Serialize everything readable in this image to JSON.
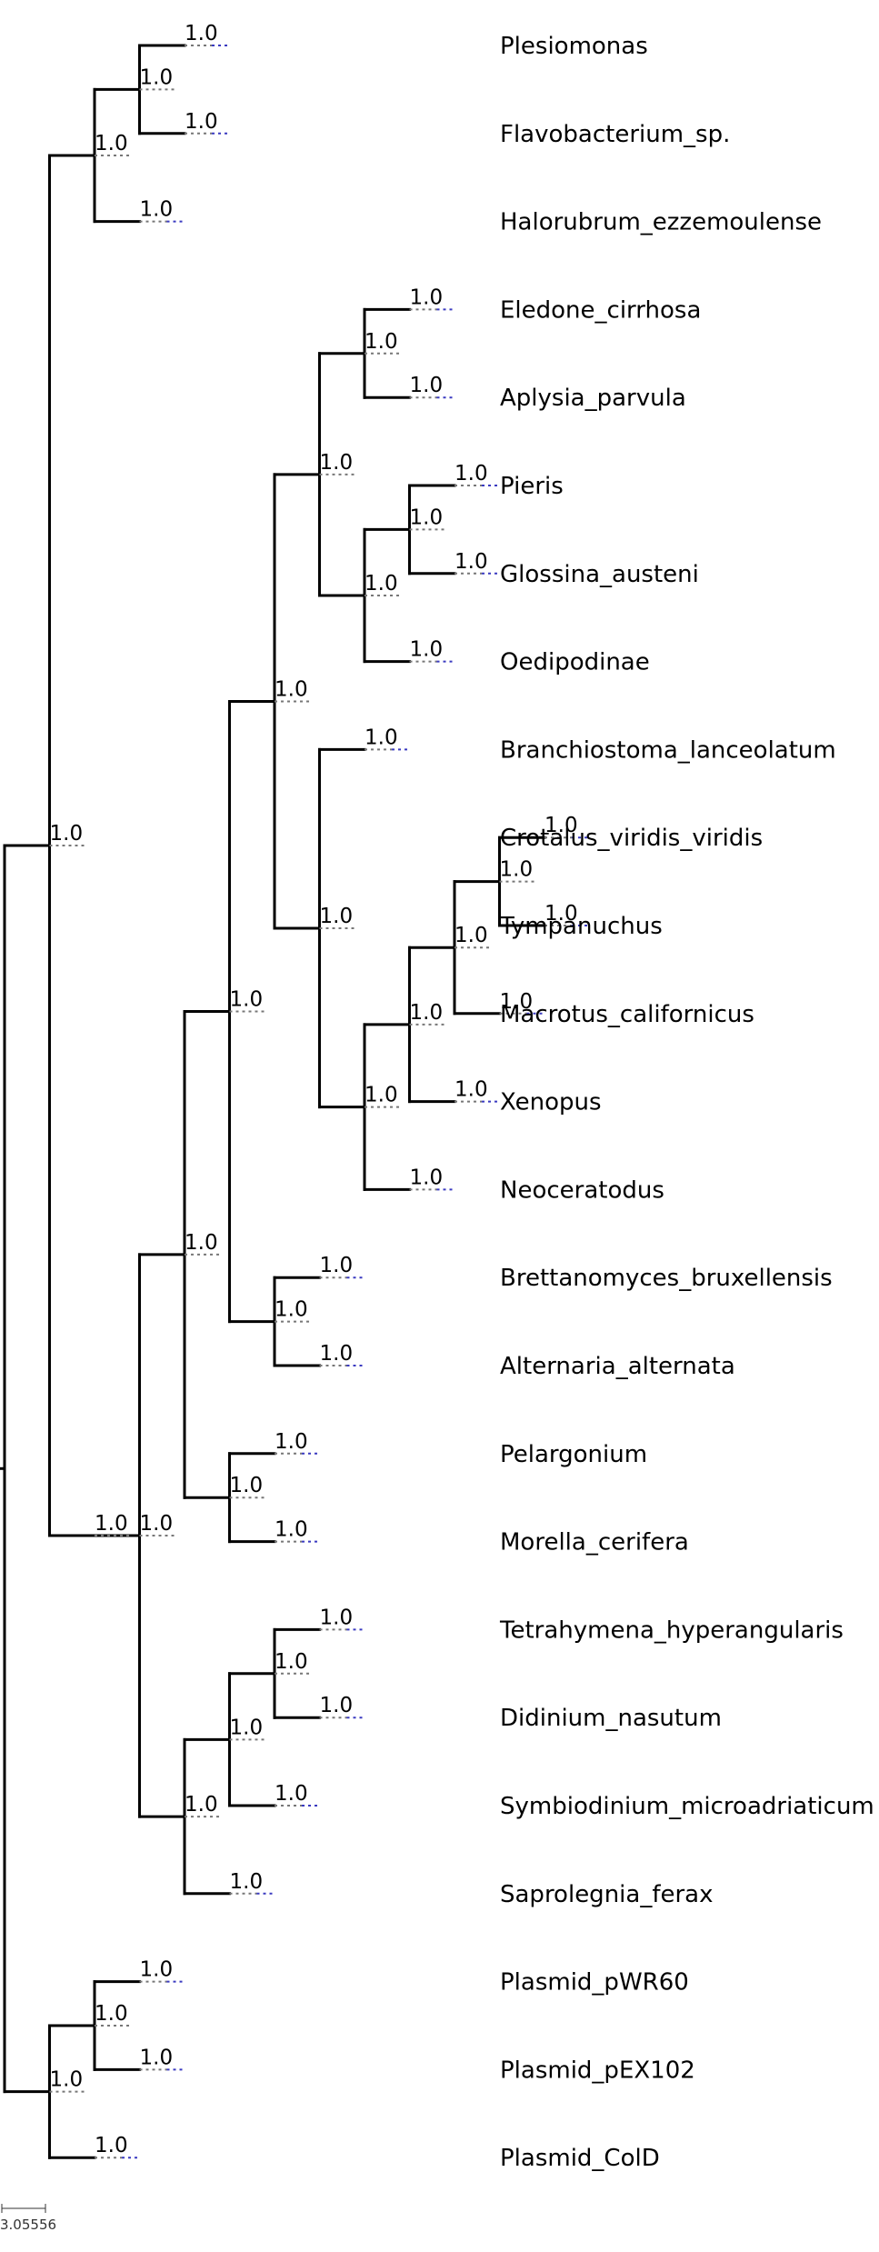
{
  "tree": {
    "leaves": [
      "Plesiomonas",
      "Flavobacterium_sp.",
      "Halorubrum_ezzemoulense",
      "Eledone_cirrhosa",
      "Aplysia_parvula",
      "Pieris",
      "Glossina_austeni",
      "Oedipodinae",
      "Branchiostoma_lanceolatum",
      "Crotalus_viridis_viridis",
      "Tympanuchus",
      "Macrotus_californicus",
      "Xenopus",
      "Neoceratodus",
      "Brettanomyces_bruxellensis",
      "Alternaria_alternata",
      "Pelargonium",
      "Morella_cerifera",
      "Tetrahymena_hyperangularis",
      "Didinium_nasutum",
      "Symbiodinium_microadriaticum",
      "Saprolegnia_ferax",
      "Plasmid_pWR60",
      "Plasmid_pEX102",
      "Plasmid_ColD"
    ],
    "topology": [
      [
        [
          [
            0,
            1
          ],
          2
        ],
        [
          [
            [
              [
                [
                  [
                    [
                      3,
                      4
                    ],
                    [
                      [
                        5,
                        6
                      ],
                      7
                    ]
                  ],
                  [
                    8,
                    [
                      [
                        [
                          [
                            9,
                            10
                          ],
                          11
                        ],
                        12
                      ],
                      13
                    ]
                  ]
                ],
                [
                  14,
                  15
                ]
              ],
              [
                16,
                17
              ]
            ],
            [
              [
                [
                  18,
                  19
                ],
                20
              ],
              21
            ]
          ]
        ]
      ],
      [
        [
          22,
          23
        ],
        24
      ]
    ],
    "support_label": "1.0",
    "scale_label": "3.05556",
    "colors": {
      "branch": "#000000",
      "tip_dash_gray": "#777777",
      "tip_dash_blue": "#3a3ac0"
    }
  }
}
